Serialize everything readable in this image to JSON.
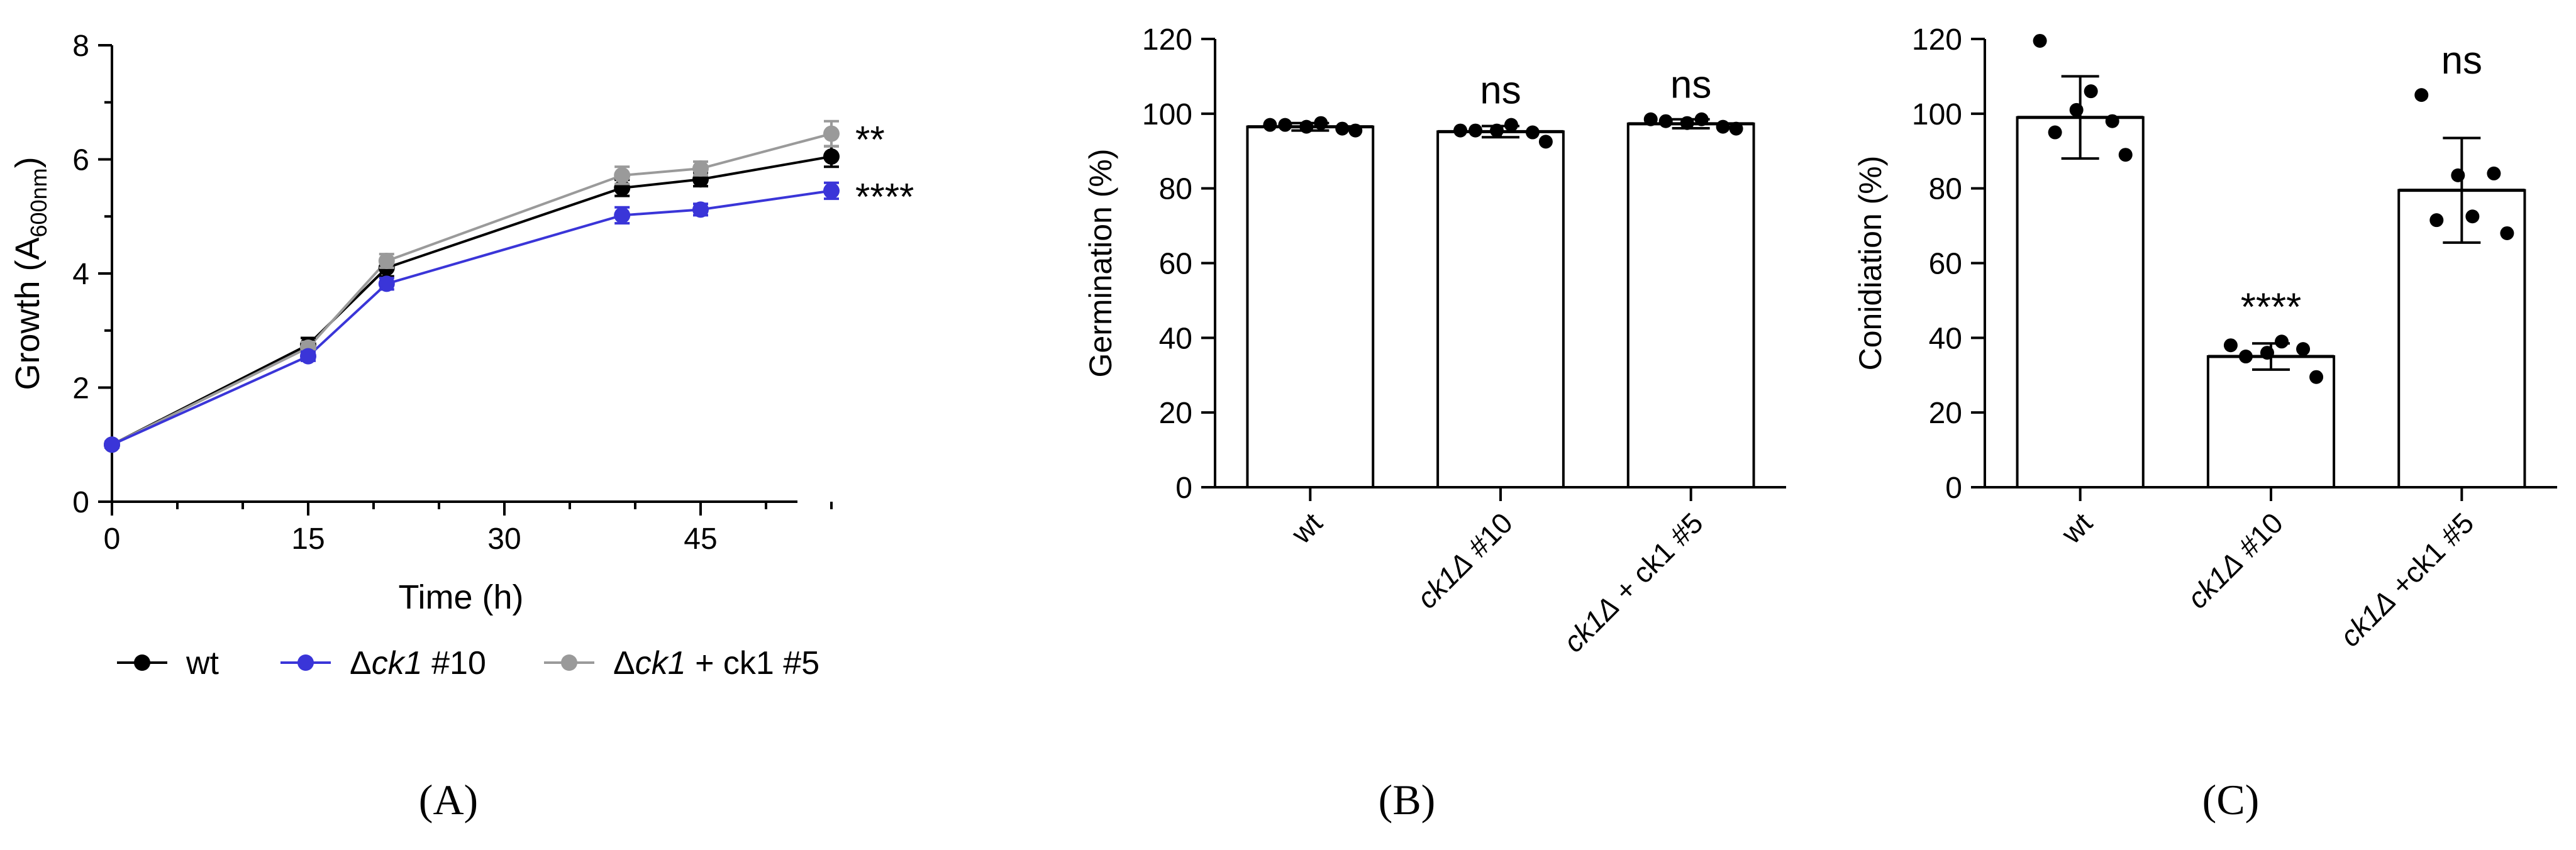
{
  "figure": {
    "panel_labels": [
      "(A)",
      "(B)",
      "(C)"
    ]
  },
  "chart_data": [
    {
      "panel": "A",
      "type": "line",
      "xlabel": "Time (h)",
      "ylabel_parts": [
        "Growth (A",
        "600nm",
        ")"
      ],
      "xlim": [
        0,
        55
      ],
      "ylim": [
        0,
        8
      ],
      "xticks": [
        0,
        15,
        30,
        45
      ],
      "yticks": [
        0,
        2,
        4,
        6,
        8
      ],
      "grid": false,
      "legend": "bottom",
      "x": [
        0,
        15,
        21,
        39,
        45,
        55
      ],
      "series": [
        {
          "id": "wt",
          "label_parts": [
            {
              "t": "wt",
              "i": false
            }
          ],
          "color": "#000000",
          "values": [
            1.0,
            2.75,
            4.1,
            5.5,
            5.65,
            6.05
          ],
          "errors": [
            0.05,
            0.12,
            0.15,
            0.14,
            0.12,
            0.18
          ]
        },
        {
          "id": "ck1-10",
          "label_parts": [
            {
              "t": "Δ",
              "i": false
            },
            {
              "t": "ck1",
              "i": true
            },
            {
              "t": " #10",
              "i": false
            }
          ],
          "color": "#3a35d8",
          "values": [
            1.0,
            2.55,
            3.82,
            5.02,
            5.12,
            5.45
          ],
          "errors": [
            0.05,
            0.08,
            0.1,
            0.14,
            0.1,
            0.14
          ]
        },
        {
          "id": "ck1-5",
          "label_parts": [
            {
              "t": "Δ",
              "i": false
            },
            {
              "t": "ck1",
              "i": true
            },
            {
              "t": " + ck1 #5",
              "i": false
            }
          ],
          "color": "#9a9a9a",
          "values": [
            1.0,
            2.7,
            4.22,
            5.72,
            5.84,
            6.45
          ],
          "errors": [
            0.05,
            0.1,
            0.12,
            0.15,
            0.12,
            0.22
          ]
        }
      ],
      "annotations": [
        {
          "series": "ck1-5",
          "text": "**"
        },
        {
          "series": "ck1-10",
          "text": "****"
        }
      ]
    },
    {
      "panel": "B",
      "type": "bar",
      "ylabel": "Germination (%)",
      "ylim": [
        0,
        120
      ],
      "yticks": [
        0,
        20,
        40,
        60,
        80,
        100,
        120
      ],
      "categories": [
        [
          {
            "t": "wt",
            "i": false
          }
        ],
        [
          {
            "t": "ck1Δ",
            "i": true
          },
          {
            "t": " #10",
            "i": false
          }
        ],
        [
          {
            "t": "ck1Δ",
            "i": true
          },
          {
            "t": " + ck1 #5",
            "i": false
          }
        ]
      ],
      "values": [
        96.5,
        95.2,
        97.3
      ],
      "errors": [
        1.0,
        1.5,
        1.2
      ],
      "points": [
        [
          97,
          97,
          96.5,
          97.5,
          96,
          95.5
        ],
        [
          95.5,
          95.5,
          95.5,
          97,
          95,
          92.5
        ],
        [
          98.5,
          98,
          97.5,
          98.5,
          96.5,
          96
        ]
      ],
      "significance": [
        "",
        "ns",
        "ns"
      ]
    },
    {
      "panel": "C",
      "type": "bar",
      "ylabel": "Conidiation (%)",
      "ylim": [
        0,
        120
      ],
      "yticks": [
        0,
        20,
        40,
        60,
        80,
        100,
        120
      ],
      "categories": [
        [
          {
            "t": "wt",
            "i": false
          }
        ],
        [
          {
            "t": "ck1Δ",
            "i": true
          },
          {
            "t": " #10",
            "i": false
          }
        ],
        [
          {
            "t": "ck1Δ",
            "i": true
          },
          {
            "t": " +ck1 #5",
            "i": false
          }
        ]
      ],
      "values": [
        99,
        35,
        79.5
      ],
      "errors": [
        11,
        3.5,
        14
      ],
      "points": [
        [
          119.5,
          95,
          101,
          106,
          98,
          89
        ],
        [
          38,
          35,
          36,
          39,
          37,
          29.5
        ],
        [
          105,
          71.5,
          83.5,
          72.5,
          84,
          68
        ]
      ],
      "significance": [
        "",
        "****",
        "ns"
      ]
    }
  ]
}
